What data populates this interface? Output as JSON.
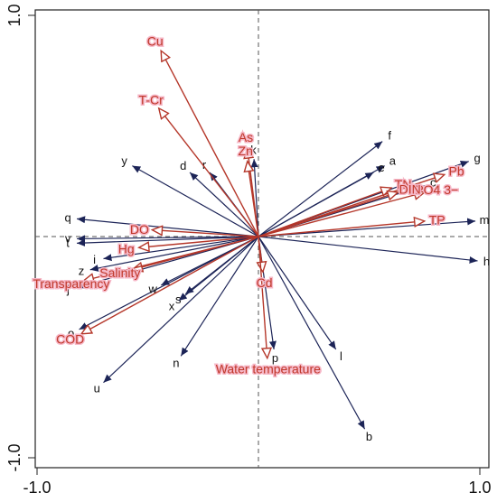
{
  "chart_data": {
    "type": "biplot",
    "xlim": [
      -1.0,
      1.0
    ],
    "ylim": [
      -1.0,
      1.0
    ],
    "x_ticks": [
      {
        "value": -1.0,
        "label": "-1.0"
      },
      {
        "value": 1.0,
        "label": "1.0"
      }
    ],
    "y_ticks": [
      {
        "value": 1.0,
        "label": "1.0"
      },
      {
        "value": -1.0,
        "label": "-1.0"
      }
    ],
    "reference_lines": [
      0,
      0
    ],
    "colors": {
      "site": "#1c2457",
      "env_line": "#b5372a",
      "env_label": "#c0392b",
      "label_halo": "#f6b8c8",
      "axis": "#222222",
      "dashed": "#555555"
    },
    "sites": [
      {
        "name": "a",
        "x": 0.57,
        "y": 0.32
      },
      {
        "name": "b",
        "x": 0.48,
        "y": -0.87
      },
      {
        "name": "c",
        "x": 0.75,
        "y": 0.23
      },
      {
        "name": "d",
        "x": -0.31,
        "y": 0.29
      },
      {
        "name": "e",
        "x": 0.52,
        "y": 0.29
      },
      {
        "name": "f",
        "x": 0.56,
        "y": 0.43
      },
      {
        "name": "g",
        "x": 0.95,
        "y": 0.34
      },
      {
        "name": "h",
        "x": 0.99,
        "y": -0.11
      },
      {
        "name": "i",
        "x": -0.7,
        "y": -0.1
      },
      {
        "name": "j",
        "x": -0.82,
        "y": -0.23
      },
      {
        "name": "k",
        "x": -0.02,
        "y": 0.35
      },
      {
        "name": "l",
        "x": 0.35,
        "y": -0.51
      },
      {
        "name": "m",
        "x": 0.98,
        "y": 0.07
      },
      {
        "name": "n",
        "x": -0.35,
        "y": -0.54
      },
      {
        "name": "o",
        "x": -0.81,
        "y": -0.42
      },
      {
        "name": "p",
        "x": 0.07,
        "y": -0.51
      },
      {
        "name": "q",
        "x": -0.82,
        "y": 0.08
      },
      {
        "name": "r",
        "x": -0.22,
        "y": 0.29
      },
      {
        "name": "s",
        "x": -0.33,
        "y": -0.26
      },
      {
        "name": "t",
        "x": -0.82,
        "y": -0.03
      },
      {
        "name": "u",
        "x": -0.7,
        "y": -0.66
      },
      {
        "name": "v",
        "x": -0.82,
        "y": -0.01
      },
      {
        "name": "w",
        "x": -0.44,
        "y": -0.22
      },
      {
        "name": "x",
        "x": -0.36,
        "y": -0.29
      },
      {
        "name": "y",
        "x": -0.57,
        "y": 0.32
      },
      {
        "name": "z",
        "x": -0.76,
        "y": -0.15
      }
    ],
    "environmental_factors": [
      {
        "name": "Cu",
        "x": -0.44,
        "y": 0.84
      },
      {
        "name": "T-Cr",
        "x": -0.45,
        "y": 0.58
      },
      {
        "name": "As",
        "x": -0.05,
        "y": 0.4
      },
      {
        "name": "Zn",
        "x": -0.05,
        "y": 0.34
      },
      {
        "name": "Pb",
        "x": 0.84,
        "y": 0.28
      },
      {
        "name": "TN",
        "x": 0.6,
        "y": 0.22
      },
      {
        "name": "PO4 3−",
        "x": 0.75,
        "y": 0.2
      },
      {
        "name": "DIN",
        "x": 0.63,
        "y": 0.2
      },
      {
        "name": "TP",
        "x": 0.75,
        "y": 0.07
      },
      {
        "name": "DO",
        "x": -0.48,
        "y": 0.03
      },
      {
        "name": "Hg",
        "x": -0.54,
        "y": -0.05
      },
      {
        "name": "Salinity",
        "x": -0.57,
        "y": -0.15
      },
      {
        "name": "Transparency",
        "x": -0.79,
        "y": -0.2
      },
      {
        "name": "COD",
        "x": -0.8,
        "y": -0.44
      },
      {
        "name": "Cd",
        "x": 0.02,
        "y": -0.16
      },
      {
        "name": "Water temperature",
        "x": 0.04,
        "y": -0.55
      }
    ]
  }
}
